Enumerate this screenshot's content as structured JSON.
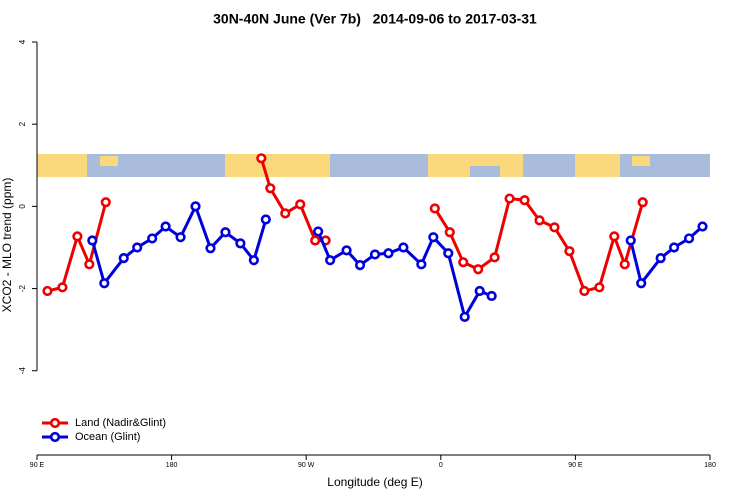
{
  "chart_data": {
    "type": "line",
    "title": "30N-40N June (Ver 7b)   2014-09-06 to 2017-03-31",
    "x_label": "Longitude (deg E)",
    "y_label": "XCO2 - MLO trend (ppm)",
    "xlim": [
      90,
      540
    ],
    "ylim": [
      -6.05,
      4.17
    ],
    "xticks": [
      {
        "value": 90,
        "label": "90 E"
      },
      180,
      {
        "value": 270,
        "label": "90 W"
      },
      {
        "value": 360,
        "label": "0"
      },
      {
        "value": 450,
        "label": "90 E"
      },
      {
        "value": 540,
        "label": "180"
      }
    ],
    "yticks": [
      -4,
      -2,
      0,
      2,
      4
    ],
    "legend": "bottom-left",
    "series": [
      {
        "name": "Land (Nadir&Glint)",
        "color": "#ee0000",
        "x": [
          97,
          107,
          117,
          125,
          136,
          190,
          240,
          246,
          256,
          266,
          276,
          283,
          320,
          356,
          366,
          375,
          385,
          396,
          406,
          416,
          426,
          436,
          446,
          456,
          466,
          476,
          483,
          495
        ],
        "values": [
          -2.06,
          -1.97,
          -0.73,
          -1.41,
          0.1,
          null,
          1.17,
          0.44,
          -0.17,
          0.05,
          -0.83,
          -0.83,
          null,
          -0.05,
          -0.63,
          -1.36,
          -1.53,
          -1.24,
          0.19,
          0.15,
          -0.34,
          -0.51,
          -1.09,
          -2.06,
          -1.97,
          -0.73,
          -1.41,
          0.1
        ]
      },
      {
        "name": "Ocean (Glint)",
        "color": "#0000dd",
        "x": [
          127,
          135,
          148,
          157,
          167,
          176,
          186,
          196,
          206,
          216,
          226,
          235,
          243,
          260,
          278,
          286,
          297,
          306,
          316,
          325,
          335,
          347,
          355,
          365,
          376,
          386,
          394,
          440,
          487,
          494,
          507,
          516,
          526,
          535
        ],
        "values": [
          -0.83,
          -1.87,
          -1.26,
          -1.0,
          -0.78,
          -0.49,
          -0.75,
          0.0,
          -1.02,
          -0.63,
          -0.9,
          -1.31,
          -0.32,
          null,
          -0.61,
          -1.31,
          -1.07,
          -1.43,
          -1.17,
          -1.14,
          -1.0,
          -1.41,
          -0.75,
          -1.14,
          -2.69,
          -2.06,
          -2.18,
          null,
          -0.83,
          -1.87,
          -1.26,
          -1.0,
          -0.78,
          -0.49
        ]
      }
    ]
  }
}
